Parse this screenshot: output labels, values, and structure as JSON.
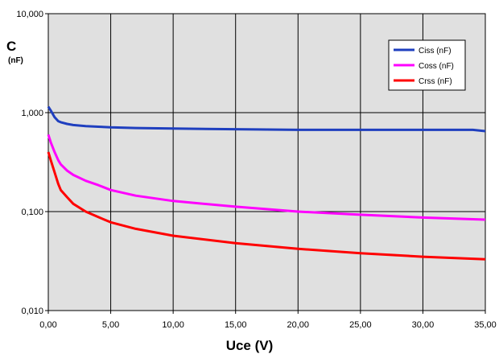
{
  "chart_data": {
    "type": "line",
    "title": "",
    "ylabel": "C",
    "yunit": "(nF)",
    "xlabel": "Uce (V)",
    "yscale": "log",
    "ylim": [
      0.01,
      10
    ],
    "xlim": [
      0,
      35
    ],
    "grid": true,
    "legend_position": "top-right",
    "x_ticks": [
      0,
      5,
      10,
      15,
      20,
      25,
      30,
      35
    ],
    "x_tick_labels": [
      "0,00",
      "5,00",
      "10,00",
      "15,00",
      "20,00",
      "25,00",
      "30,00",
      "35,00"
    ],
    "y_ticks": [
      0.01,
      0.1,
      1,
      10
    ],
    "y_tick_labels": [
      "0,010",
      "0,100",
      "1,000",
      "10,000"
    ],
    "series": [
      {
        "name": "Ciss (nF)",
        "color": "#1f3fbf",
        "x": [
          0,
          0.2,
          0.5,
          0.8,
          1,
          1.5,
          2,
          3,
          4,
          5,
          7,
          10,
          15,
          20,
          25,
          30,
          34,
          35
        ],
        "y": [
          1.15,
          1.05,
          0.9,
          0.82,
          0.8,
          0.77,
          0.75,
          0.73,
          0.72,
          0.71,
          0.7,
          0.69,
          0.68,
          0.67,
          0.67,
          0.67,
          0.67,
          0.65
        ]
      },
      {
        "name": "Coss (nF)",
        "color": "#ff00ff",
        "x": [
          0,
          0.2,
          0.5,
          0.8,
          1,
          1.5,
          2,
          3,
          4,
          5,
          7,
          10,
          15,
          20,
          25,
          30,
          35
        ],
        "y": [
          0.6,
          0.5,
          0.4,
          0.33,
          0.3,
          0.26,
          0.235,
          0.205,
          0.185,
          0.165,
          0.145,
          0.128,
          0.112,
          0.1,
          0.093,
          0.087,
          0.083
        ]
      },
      {
        "name": "Crss (nF)",
        "color": "#ff0000",
        "x": [
          0,
          0.2,
          0.5,
          0.8,
          1,
          1.5,
          2,
          3,
          4,
          5,
          7,
          10,
          15,
          20,
          25,
          30,
          35
        ],
        "y": [
          0.4,
          0.33,
          0.25,
          0.19,
          0.165,
          0.14,
          0.12,
          0.1,
          0.088,
          0.078,
          0.067,
          0.057,
          0.048,
          0.042,
          0.038,
          0.035,
          0.033
        ]
      }
    ]
  },
  "style": {
    "plot_background": "#e0e0e0",
    "grid_color": "#000000"
  }
}
